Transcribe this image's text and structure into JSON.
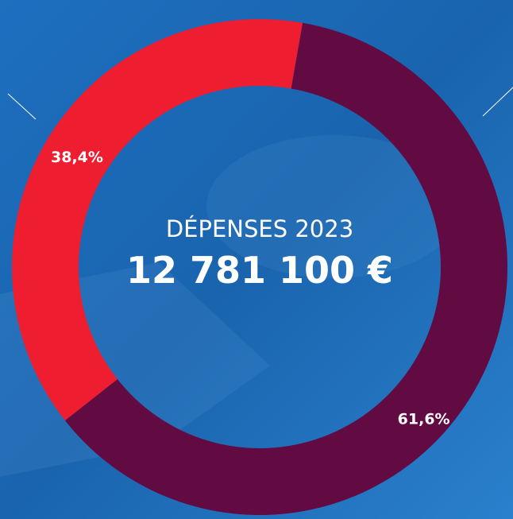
{
  "chart_data": {
    "type": "donut",
    "title": "DÉPENSES 2023",
    "subtitle": "12 781 100 €",
    "values": [
      38.4,
      61.6
    ],
    "value_labels": [
      "38,4%",
      "61,6%"
    ],
    "colors": [
      "#ee1d2f",
      "#620a42"
    ]
  }
}
